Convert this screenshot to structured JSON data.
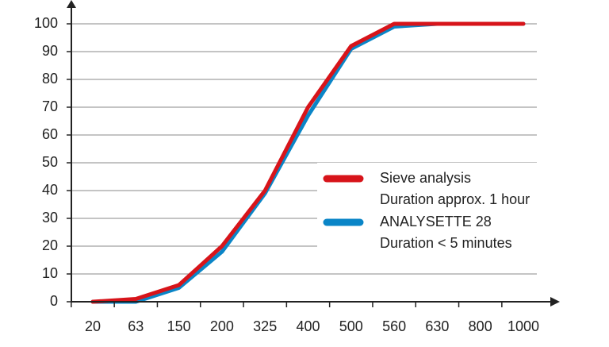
{
  "chart_data": {
    "type": "line",
    "categories": [
      "20",
      "63",
      "150",
      "200",
      "325",
      "400",
      "500",
      "560",
      "630",
      "800",
      "1000"
    ],
    "series": [
      {
        "name": "Sieve analysis",
        "description": "Duration approx. 1 hour",
        "color": "#d7141a",
        "values": [
          0,
          1,
          6,
          20,
          40,
          70,
          92,
          100,
          100,
          100,
          100
        ]
      },
      {
        "name": "ANALYSETTE 28",
        "description": "Duration < 5 minutes",
        "color": "#0a85c7",
        "values": [
          0,
          0,
          5,
          18,
          39,
          67,
          91,
          99,
          100,
          100,
          100
        ]
      }
    ],
    "ylim": [
      0,
      100
    ],
    "yticks": [
      0,
      10,
      20,
      30,
      40,
      50,
      60,
      70,
      80,
      90,
      100
    ],
    "grid": true
  }
}
